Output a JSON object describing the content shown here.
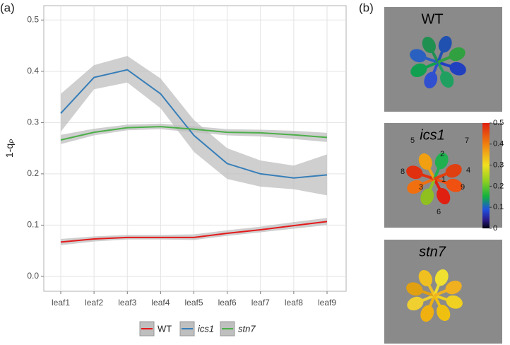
{
  "chart_data": [
    {
      "type": "line",
      "title": "(a)",
      "ylabel": "1-q",
      "ylabel_subscript": "P",
      "categories": [
        "leaf1",
        "leaf2",
        "leaf3",
        "leaf4",
        "leaf5",
        "leaf6",
        "leaf7",
        "leaf8",
        "leaf9"
      ],
      "ylim": [
        -0.029,
        0.528
      ],
      "yticks": [
        {
          "value": 0,
          "label": "0.0"
        },
        0.1,
        0.2,
        0.3,
        0.4,
        0.5
      ],
      "grid": true,
      "legend": "bottom",
      "band_color": "#bfbfbf",
      "series": [
        {
          "name": "WT",
          "color": "#e41a1c",
          "italic": false,
          "values": [
            0.067,
            0.073,
            0.076,
            0.076,
            0.076,
            0.084,
            0.091,
            0.099,
            0.107
          ],
          "lower": [
            0.061,
            0.068,
            0.072,
            0.072,
            0.071,
            0.079,
            0.086,
            0.093,
            0.1
          ],
          "upper": [
            0.073,
            0.078,
            0.081,
            0.081,
            0.082,
            0.09,
            0.097,
            0.106,
            0.114
          ]
        },
        {
          "name": "ics1",
          "color": "#377eb8",
          "italic": true,
          "values": [
            0.318,
            0.388,
            0.403,
            0.356,
            0.275,
            0.22,
            0.2,
            0.192,
            0.198
          ],
          "lower": [
            0.282,
            0.365,
            0.378,
            0.328,
            0.243,
            0.19,
            0.175,
            0.17,
            0.158
          ],
          "upper": [
            0.356,
            0.412,
            0.43,
            0.386,
            0.305,
            0.25,
            0.226,
            0.216,
            0.238
          ]
        },
        {
          "name": "stn7",
          "color": "#4daf4a",
          "italic": true,
          "values": [
            0.266,
            0.281,
            0.29,
            0.292,
            0.287,
            0.281,
            0.28,
            0.276,
            0.271
          ],
          "lower": [
            0.258,
            0.275,
            0.285,
            0.287,
            0.281,
            0.275,
            0.273,
            0.268,
            0.262
          ],
          "upper": [
            0.276,
            0.288,
            0.296,
            0.298,
            0.293,
            0.287,
            0.286,
            0.284,
            0.28
          ]
        }
      ]
    },
    {
      "type": "colorbar",
      "title": "(b)",
      "panels": [
        {
          "label": "WT",
          "italic": false
        },
        {
          "label": "ics1",
          "italic": true
        },
        {
          "label": "stn7",
          "italic": true
        }
      ],
      "leaf_numbers": [
        "5",
        "2",
        "7",
        "8",
        "4",
        "3",
        "1",
        "9",
        "6"
      ],
      "clim": [
        0,
        0.5
      ],
      "ticks": [
        0,
        0.1,
        0.2,
        0.3,
        0.4,
        0.5
      ]
    }
  ]
}
